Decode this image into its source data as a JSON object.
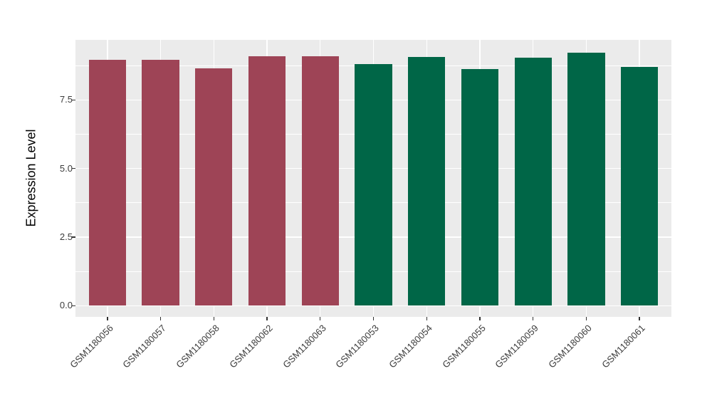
{
  "figure": {
    "background": "#FFFFFF",
    "panel_background": "#EBEBEB",
    "gridline_color": "#FFFFFF",
    "tick_color": "#333333",
    "tick_label_color": "#3C3C3C",
    "axis_title_color": "#000000"
  },
  "chart_data": {
    "type": "bar",
    "title": "",
    "xlabel": "",
    "ylabel": "Expression Level",
    "categories": [
      "GSM1180056",
      "GSM1180057",
      "GSM1180058",
      "GSM1180062",
      "GSM1180063",
      "GSM1180053",
      "GSM1180054",
      "GSM1180055",
      "GSM1180059",
      "GSM1180060",
      "GSM1180061"
    ],
    "values": [
      8.97,
      8.97,
      8.64,
      9.09,
      9.09,
      8.8,
      9.07,
      8.63,
      9.03,
      9.23,
      8.71
    ],
    "colors": [
      "#9E4456",
      "#9E4456",
      "#9E4456",
      "#9E4456",
      "#9E4456",
      "#006647",
      "#006647",
      "#006647",
      "#006647",
      "#006647",
      "#006647"
    ],
    "group_colors": {
      "left_group": "#9E4456",
      "right_group": "#006647"
    },
    "ylim": [
      -0.41,
      9.69
    ],
    "yticks": [
      0,
      2.5,
      5,
      7.5
    ],
    "ytick_labels": [
      "0.0",
      "2.5",
      "5.0",
      "7.5"
    ],
    "yticks_minor": [
      1.25,
      3.75,
      6.25,
      8.75
    ],
    "x_tick_rotation_deg": 45,
    "bar_relative_width": 0.7,
    "grid": "on",
    "legend": "none"
  }
}
